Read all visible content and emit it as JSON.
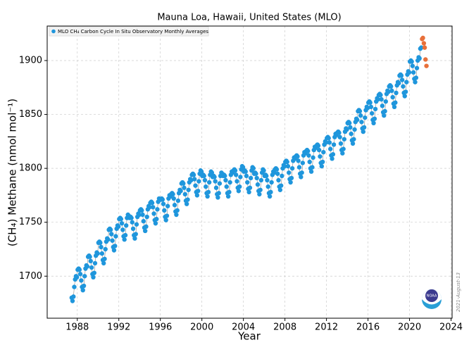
{
  "chart_data": {
    "type": "scatter",
    "title": "Mauna Loa, Hawaii, United States (MLO)",
    "x_label": "Year",
    "y_label": "(CH₄) Methane (nmol mol⁻¹)",
    "date_stamp": "2021-August-13",
    "xlim": [
      1985.1,
      2024.1
    ],
    "ylim": [
      1661,
      1932
    ],
    "xticks": [
      1988,
      1992,
      1996,
      2000,
      2004,
      2008,
      2012,
      2016,
      2020,
      2024
    ],
    "yticks": [
      1700,
      1750,
      1800,
      1850,
      1900
    ],
    "grid": true,
    "legend_position": "upper left",
    "series": [
      {
        "name": "MLO CH₄ Carbon Cycle In Situ Observatory Monthly Averages",
        "color": "#1f96dc",
        "x": [
          1987.46,
          1987.54,
          1987.63,
          1987.71,
          1987.79,
          1987.88,
          1987.96,
          1988.04,
          1988.13,
          1988.21,
          1988.29,
          1988.38,
          1988.46,
          1988.54,
          1988.63,
          1988.71,
          1988.79,
          1988.88,
          1988.96,
          1989.04,
          1989.13,
          1989.21,
          1989.29,
          1989.38,
          1989.46,
          1989.54,
          1989.63,
          1989.71,
          1989.79,
          1989.88,
          1989.96,
          1990.04,
          1990.13,
          1990.21,
          1990.29,
          1990.38,
          1990.46,
          1990.54,
          1990.63,
          1990.71,
          1990.79,
          1990.88,
          1990.96,
          1991.04,
          1991.13,
          1991.21,
          1991.29,
          1991.38,
          1991.46,
          1991.54,
          1991.63,
          1991.71,
          1991.79,
          1991.88,
          1991.96,
          1992.04,
          1992.13,
          1992.21,
          1992.29,
          1992.38,
          1992.46,
          1992.54,
          1992.63,
          1992.71,
          1992.79,
          1992.88,
          1992.96,
          1993.04,
          1993.13,
          1993.21,
          1993.29,
          1993.38,
          1993.46,
          1993.54,
          1993.63,
          1993.71,
          1993.79,
          1993.88,
          1993.96,
          1994.04,
          1994.13,
          1994.21,
          1994.29,
          1994.38,
          1994.46,
          1994.54,
          1994.63,
          1994.71,
          1994.79,
          1994.88,
          1994.96,
          1995.04,
          1995.13,
          1995.21,
          1995.29,
          1995.38,
          1995.46,
          1995.54,
          1995.63,
          1995.71,
          1995.79,
          1995.88,
          1995.96,
          1996.04,
          1996.13,
          1996.21,
          1996.29,
          1996.38,
          1996.46,
          1996.54,
          1996.63,
          1996.71,
          1996.79,
          1996.88,
          1996.96,
          1997.04,
          1997.13,
          1997.21,
          1997.29,
          1997.38,
          1997.46,
          1997.54,
          1997.63,
          1997.71,
          1997.79,
          1997.88,
          1997.96,
          1998.04,
          1998.13,
          1998.21,
          1998.29,
          1998.38,
          1998.46,
          1998.54,
          1998.63,
          1998.71,
          1998.79,
          1998.88,
          1998.96,
          1999.04,
          1999.13,
          1999.21,
          1999.29,
          1999.38,
          1999.46,
          1999.54,
          1999.63,
          1999.71,
          1999.79,
          1999.88,
          1999.96,
          2000.04,
          2000.13,
          2000.21,
          2000.29,
          2000.38,
          2000.46,
          2000.54,
          2000.63,
          2000.71,
          2000.79,
          2000.88,
          2000.96,
          2001.04,
          2001.13,
          2001.21,
          2001.29,
          2001.38,
          2001.46,
          2001.54,
          2001.63,
          2001.71,
          2001.79,
          2001.88,
          2001.96,
          2002.04,
          2002.13,
          2002.21,
          2002.29,
          2002.38,
          2002.46,
          2002.54,
          2002.63,
          2002.71,
          2002.79,
          2002.88,
          2002.96,
          2003.04,
          2003.13,
          2003.21,
          2003.29,
          2003.38,
          2003.46,
          2003.54,
          2003.63,
          2003.71,
          2003.79,
          2003.88,
          2003.96,
          2004.04,
          2004.13,
          2004.21,
          2004.29,
          2004.38,
          2004.46,
          2004.54,
          2004.63,
          2004.71,
          2004.79,
          2004.88,
          2004.96,
          2005.04,
          2005.13,
          2005.21,
          2005.29,
          2005.38,
          2005.46,
          2005.54,
          2005.63,
          2005.71,
          2005.79,
          2005.88,
          2005.96,
          2006.04,
          2006.13,
          2006.21,
          2006.29,
          2006.38,
          2006.46,
          2006.54,
          2006.63,
          2006.71,
          2006.79,
          2006.88,
          2006.96,
          2007.04,
          2007.13,
          2007.21,
          2007.29,
          2007.38,
          2007.46,
          2007.54,
          2007.63,
          2007.71,
          2007.79,
          2007.88,
          2007.96,
          2008.04,
          2008.13,
          2008.21,
          2008.29,
          2008.38,
          2008.46,
          2008.54,
          2008.63,
          2008.71,
          2008.79,
          2008.88,
          2008.96,
          2009.04,
          2009.13,
          2009.21,
          2009.29,
          2009.38,
          2009.46,
          2009.54,
          2009.63,
          2009.71,
          2009.79,
          2009.88,
          2009.96,
          2010.04,
          2010.13,
          2010.21,
          2010.29,
          2010.38,
          2010.46,
          2010.54,
          2010.63,
          2010.71,
          2010.79,
          2010.88,
          2010.96,
          2011.04,
          2011.13,
          2011.21,
          2011.29,
          2011.38,
          2011.46,
          2011.54,
          2011.63,
          2011.71,
          2011.79,
          2011.88,
          2011.96,
          2012.04,
          2012.13,
          2012.21,
          2012.29,
          2012.38,
          2012.46,
          2012.54,
          2012.63,
          2012.71,
          2012.79,
          2012.88,
          2012.96,
          2013.04,
          2013.13,
          2013.21,
          2013.29,
          2013.38,
          2013.46,
          2013.54,
          2013.63,
          2013.71,
          2013.79,
          2013.88,
          2013.96,
          2014.04,
          2014.13,
          2014.21,
          2014.29,
          2014.38,
          2014.46,
          2014.54,
          2014.63,
          2014.71,
          2014.79,
          2014.88,
          2014.96,
          2015.04,
          2015.13,
          2015.21,
          2015.29,
          2015.38,
          2015.46,
          2015.54,
          2015.63,
          2015.71,
          2015.79,
          2015.88,
          2015.96,
          2016.04,
          2016.13,
          2016.21,
          2016.29,
          2016.38,
          2016.46,
          2016.54,
          2016.63,
          2016.71,
          2016.79,
          2016.88,
          2016.96,
          2017.04,
          2017.13,
          2017.21,
          2017.29,
          2017.38,
          2017.46,
          2017.54,
          2017.63,
          2017.71,
          2017.79,
          2017.88,
          2017.96,
          2018.04,
          2018.13,
          2018.21,
          2018.29,
          2018.38,
          2018.46,
          2018.54,
          2018.63,
          2018.71,
          2018.79,
          2018.88,
          2018.96,
          2019.04,
          2019.13,
          2019.21,
          2019.29,
          2019.38,
          2019.46,
          2019.54,
          2019.63,
          2019.71,
          2019.79,
          2019.88,
          2019.96,
          2020.04,
          2020.13,
          2020.21,
          2020.29,
          2020.38,
          2020.46,
          2020.54,
          2020.63,
          2020.71,
          2020.79,
          2020.88,
          2020.96,
          2021.04,
          2021.13
        ],
        "values": [
          1680,
          1677,
          1681,
          1690,
          1697,
          1700,
          1699,
          1706,
          1707,
          1706,
          1702,
          1696,
          1690,
          1687,
          1691,
          1700,
          1707,
          1710,
          1709,
          1718,
          1719,
          1718,
          1714,
          1708,
          1702,
          1699,
          1703,
          1712,
          1719,
          1722,
          1721,
          1731,
          1732,
          1731,
          1727,
          1721,
          1715,
          1712,
          1716,
          1725,
          1732,
          1735,
          1734,
          1743,
          1744,
          1743,
          1739,
          1733,
          1727,
          1724,
          1728,
          1737,
          1744,
          1747,
          1746,
          1753,
          1754,
          1753,
          1749,
          1743,
          1737,
          1734,
          1738,
          1747,
          1754,
          1757,
          1756,
          1754,
          1755,
          1754,
          1750,
          1744,
          1738,
          1735,
          1739,
          1748,
          1755,
          1758,
          1757,
          1761,
          1762,
          1761,
          1757,
          1751,
          1745,
          1742,
          1746,
          1755,
          1762,
          1765,
          1764,
          1768,
          1769,
          1768,
          1764,
          1758,
          1752,
          1749,
          1753,
          1762,
          1769,
          1772,
          1771,
          1771,
          1772,
          1771,
          1767,
          1761,
          1755,
          1752,
          1756,
          1765,
          1772,
          1775,
          1774,
          1776,
          1777,
          1776,
          1772,
          1766,
          1760,
          1757,
          1761,
          1770,
          1777,
          1780,
          1779,
          1786,
          1787,
          1786,
          1782,
          1776,
          1770,
          1767,
          1771,
          1780,
          1787,
          1790,
          1789,
          1794,
          1795,
          1794,
          1790,
          1784,
          1778,
          1775,
          1779,
          1788,
          1795,
          1798,
          1797,
          1793,
          1794,
          1793,
          1789,
          1783,
          1777,
          1774,
          1778,
          1787,
          1794,
          1797,
          1796,
          1792,
          1793,
          1792,
          1788,
          1782,
          1776,
          1773,
          1777,
          1786,
          1793,
          1796,
          1795,
          1793,
          1794,
          1793,
          1789,
          1783,
          1777,
          1774,
          1778,
          1787,
          1794,
          1797,
          1796,
          1798,
          1799,
          1798,
          1794,
          1788,
          1782,
          1779,
          1783,
          1792,
          1799,
          1802,
          1801,
          1797,
          1798,
          1797,
          1793,
          1787,
          1781,
          1778,
          1782,
          1791,
          1798,
          1801,
          1800,
          1795,
          1796,
          1795,
          1791,
          1785,
          1779,
          1776,
          1780,
          1789,
          1796,
          1799,
          1798,
          1793,
          1794,
          1793,
          1789,
          1783,
          1777,
          1774,
          1778,
          1787,
          1794,
          1797,
          1796,
          1799,
          1800,
          1799,
          1795,
          1789,
          1783,
          1780,
          1784,
          1793,
          1800,
          1803,
          1802,
          1806,
          1807,
          1806,
          1802,
          1796,
          1790,
          1787,
          1791,
          1800,
          1807,
          1810,
          1809,
          1811,
          1812,
          1811,
          1807,
          1801,
          1795,
          1792,
          1796,
          1805,
          1812,
          1815,
          1814,
          1816,
          1817,
          1816,
          1812,
          1806,
          1800,
          1797,
          1801,
          1810,
          1817,
          1820,
          1819,
          1821,
          1822,
          1821,
          1817,
          1811,
          1805,
          1802,
          1806,
          1815,
          1822,
          1825,
          1824,
          1828,
          1829,
          1828,
          1824,
          1818,
          1812,
          1809,
          1813,
          1822,
          1829,
          1832,
          1831,
          1833,
          1834,
          1833,
          1829,
          1823,
          1817,
          1814,
          1818,
          1827,
          1834,
          1837,
          1836,
          1842,
          1843,
          1842,
          1838,
          1832,
          1826,
          1823,
          1827,
          1836,
          1843,
          1846,
          1845,
          1853,
          1854,
          1853,
          1849,
          1843,
          1837,
          1834,
          1838,
          1847,
          1854,
          1857,
          1856,
          1861,
          1862,
          1861,
          1857,
          1851,
          1845,
          1842,
          1846,
          1855,
          1862,
          1865,
          1864,
          1868,
          1869,
          1868,
          1864,
          1858,
          1852,
          1849,
          1853,
          1862,
          1869,
          1872,
          1871,
          1876,
          1877,
          1876,
          1872,
          1866,
          1860,
          1857,
          1861,
          1870,
          1877,
          1880,
          1879,
          1886,
          1887,
          1886,
          1882,
          1876,
          1870,
          1867,
          1871,
          1880,
          1887,
          1890,
          1889,
          1899,
          1900,
          1899,
          1895,
          1889,
          1883,
          1880,
          1884,
          1893,
          1900,
          1903,
          1902,
          1911,
          1912
        ]
      },
      {
        "color": "#e8703a",
        "x": [
          2021.21,
          2021.29,
          2021.38,
          2021.46,
          2021.54,
          2021.63
        ],
        "values": [
          1920,
          1921,
          1916,
          1912,
          1901,
          1895
        ]
      }
    ]
  }
}
